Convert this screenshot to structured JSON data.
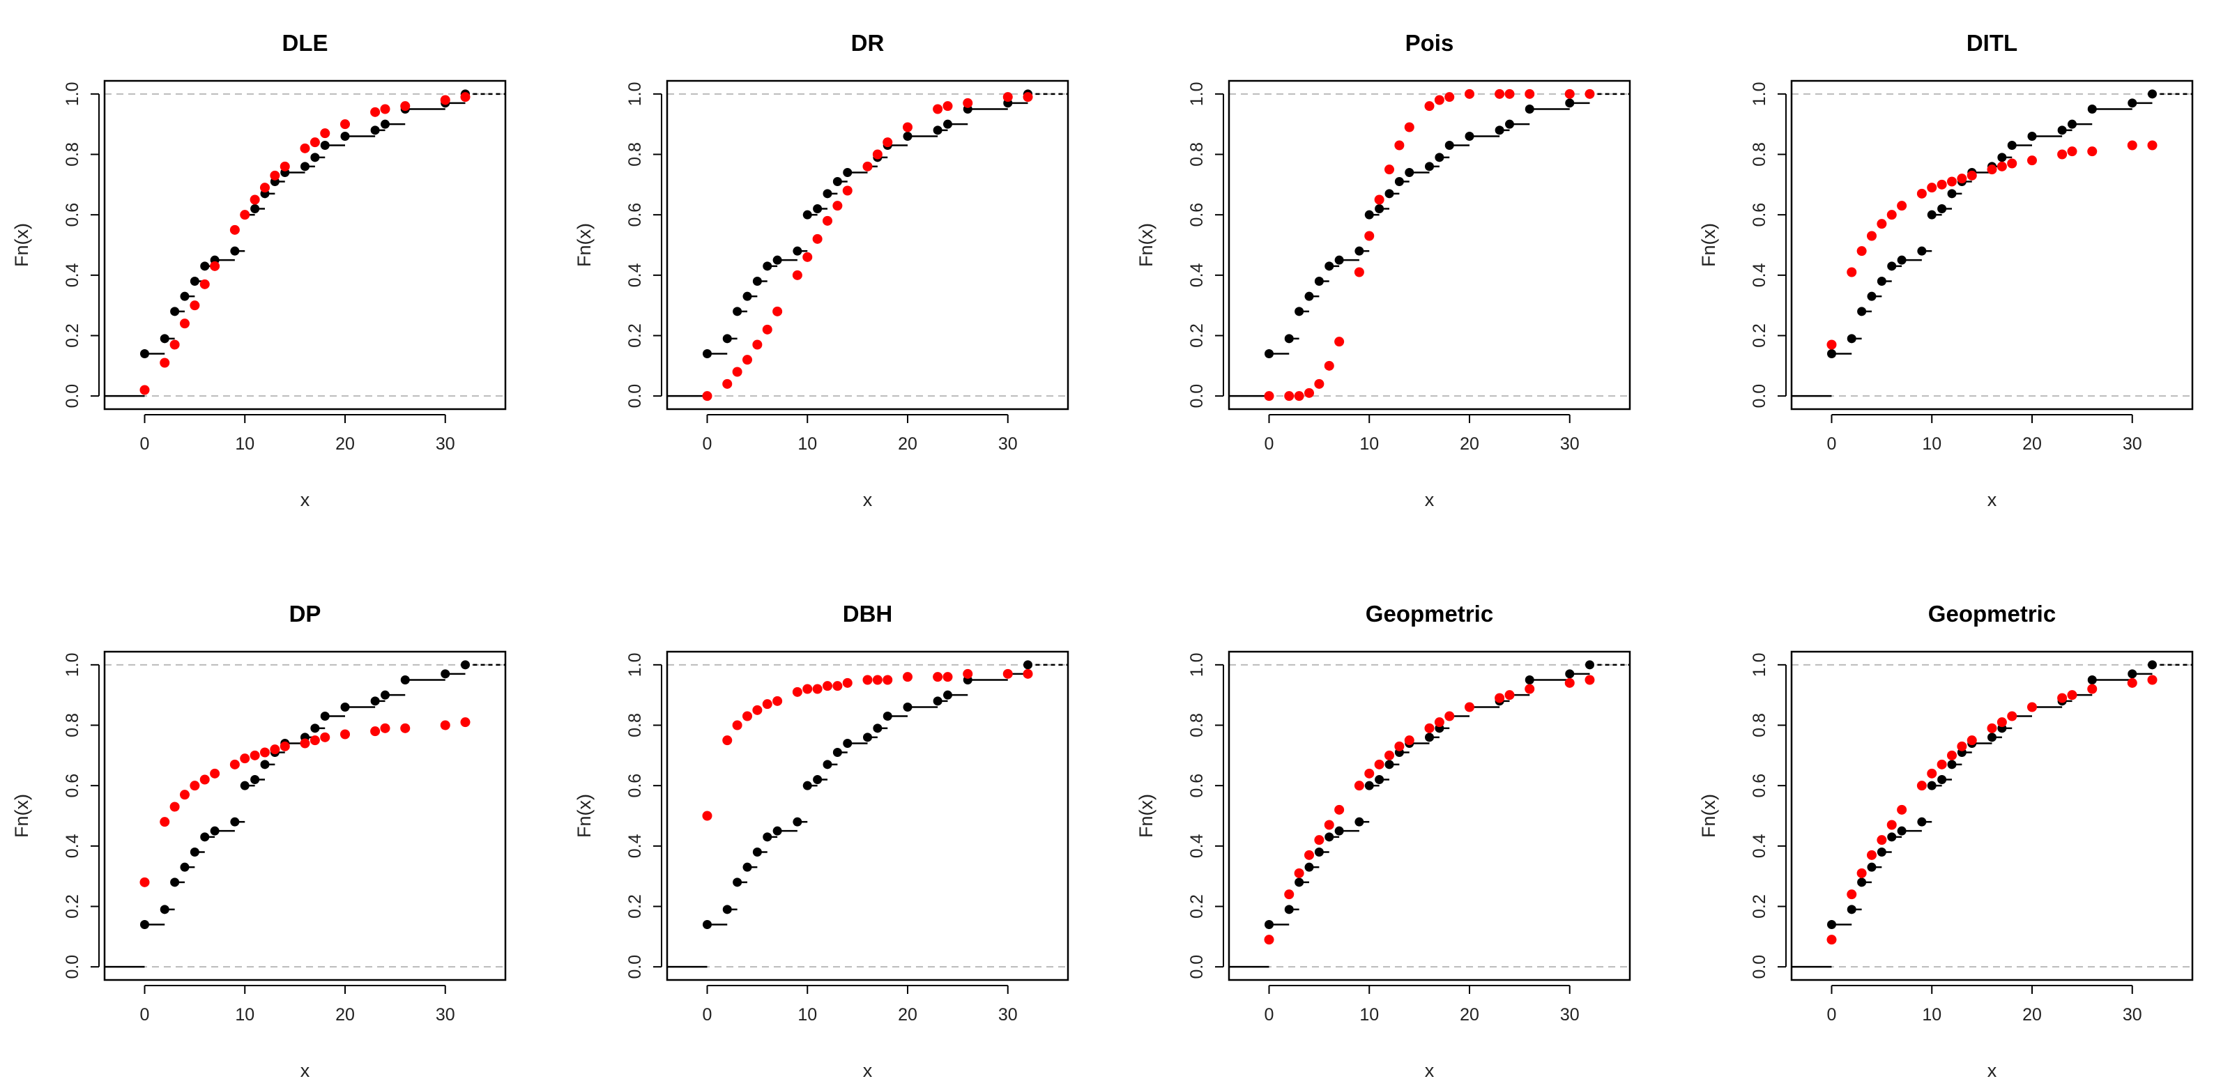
{
  "chart_data": [
    {
      "type": "step",
      "title": "DLE",
      "xlabel": "x",
      "ylabel": "Fn(x)",
      "xlim": [
        -4,
        36
      ],
      "ylim": [
        0,
        1
      ],
      "xticks": [
        0,
        10,
        20,
        30
      ],
      "yticks": [
        0.0,
        0.2,
        0.4,
        0.6,
        0.8,
        1.0
      ],
      "xtick_labels": [
        "0",
        "10",
        "20",
        "30"
      ],
      "ytick_labels": [
        "0.0",
        "0.2",
        "0.4",
        "0.6",
        "0.8",
        "1.0"
      ],
      "grid": false,
      "empirical_color": "#000000",
      "fitted_color": "#ff0000",
      "reference_color": "#bbbbbb",
      "series": [
        {
          "name": "empirical",
          "x": [
            0,
            2,
            3,
            4,
            5,
            6,
            7,
            9,
            10,
            11,
            12,
            13,
            14,
            16,
            17,
            18,
            20,
            23,
            24,
            26,
            30,
            32
          ],
          "y": [
            0.14,
            0.19,
            0.28,
            0.33,
            0.38,
            0.43,
            0.45,
            0.48,
            0.6,
            0.62,
            0.67,
            0.71,
            0.74,
            0.76,
            0.79,
            0.83,
            0.86,
            0.88,
            0.9,
            0.95,
            0.97,
            1.0
          ]
        },
        {
          "name": "fitted",
          "x": [
            0,
            2,
            3,
            4,
            5,
            6,
            7,
            9,
            10,
            11,
            12,
            13,
            14,
            16,
            17,
            18,
            20,
            23,
            24,
            26,
            30,
            32
          ],
          "y": [
            0.02,
            0.11,
            0.17,
            0.24,
            0.3,
            0.37,
            0.43,
            0.55,
            0.6,
            0.65,
            0.69,
            0.73,
            0.76,
            0.82,
            0.84,
            0.87,
            0.9,
            0.94,
            0.95,
            0.96,
            0.98,
            0.99
          ]
        }
      ]
    },
    {
      "type": "step",
      "title": "DR",
      "xlabel": "x",
      "ylabel": "Fn(x)",
      "xlim": [
        -4,
        36
      ],
      "ylim": [
        0,
        1
      ],
      "xticks": [
        0,
        10,
        20,
        30
      ],
      "yticks": [
        0.0,
        0.2,
        0.4,
        0.6,
        0.8,
        1.0
      ],
      "xtick_labels": [
        "0",
        "10",
        "20",
        "30"
      ],
      "ytick_labels": [
        "0.0",
        "0.2",
        "0.4",
        "0.6",
        "0.8",
        "1.0"
      ],
      "grid": false,
      "empirical_color": "#000000",
      "fitted_color": "#ff0000",
      "reference_color": "#bbbbbb",
      "series": [
        {
          "name": "empirical",
          "x": [
            0,
            2,
            3,
            4,
            5,
            6,
            7,
            9,
            10,
            11,
            12,
            13,
            14,
            16,
            17,
            18,
            20,
            23,
            24,
            26,
            30,
            32
          ],
          "y": [
            0.14,
            0.19,
            0.28,
            0.33,
            0.38,
            0.43,
            0.45,
            0.48,
            0.6,
            0.62,
            0.67,
            0.71,
            0.74,
            0.76,
            0.79,
            0.83,
            0.86,
            0.88,
            0.9,
            0.95,
            0.97,
            1.0
          ]
        },
        {
          "name": "fitted",
          "x": [
            0,
            2,
            3,
            4,
            5,
            6,
            7,
            9,
            10,
            11,
            12,
            13,
            14,
            16,
            17,
            18,
            20,
            23,
            24,
            26,
            30,
            32
          ],
          "y": [
            0.0,
            0.04,
            0.08,
            0.12,
            0.17,
            0.22,
            0.28,
            0.4,
            0.46,
            0.52,
            0.58,
            0.63,
            0.68,
            0.76,
            0.8,
            0.84,
            0.89,
            0.95,
            0.96,
            0.97,
            0.99,
            0.99
          ]
        }
      ]
    },
    {
      "type": "step",
      "title": "Pois",
      "xlabel": "x",
      "ylabel": "Fn(x)",
      "xlim": [
        -4,
        36
      ],
      "ylim": [
        0,
        1
      ],
      "xticks": [
        0,
        10,
        20,
        30
      ],
      "yticks": [
        0.0,
        0.2,
        0.4,
        0.6,
        0.8,
        1.0
      ],
      "xtick_labels": [
        "0",
        "10",
        "20",
        "30"
      ],
      "ytick_labels": [
        "0.0",
        "0.2",
        "0.4",
        "0.6",
        "0.8",
        "1.0"
      ],
      "grid": false,
      "empirical_color": "#000000",
      "fitted_color": "#ff0000",
      "reference_color": "#bbbbbb",
      "series": [
        {
          "name": "empirical",
          "x": [
            0,
            2,
            3,
            4,
            5,
            6,
            7,
            9,
            10,
            11,
            12,
            13,
            14,
            16,
            17,
            18,
            20,
            23,
            24,
            26,
            30,
            32
          ],
          "y": [
            0.14,
            0.19,
            0.28,
            0.33,
            0.38,
            0.43,
            0.45,
            0.48,
            0.6,
            0.62,
            0.67,
            0.71,
            0.74,
            0.76,
            0.79,
            0.83,
            0.86,
            0.88,
            0.9,
            0.95,
            0.97,
            1.0
          ]
        },
        {
          "name": "fitted",
          "x": [
            0,
            2,
            3,
            4,
            5,
            6,
            7,
            9,
            10,
            11,
            12,
            13,
            14,
            16,
            17,
            18,
            20,
            23,
            24,
            26,
            30,
            32
          ],
          "y": [
            0.0,
            0.0,
            0.0,
            0.01,
            0.04,
            0.1,
            0.18,
            0.41,
            0.53,
            0.65,
            0.75,
            0.83,
            0.89,
            0.96,
            0.98,
            0.99,
            1.0,
            1.0,
            1.0,
            1.0,
            1.0,
            1.0
          ]
        }
      ]
    },
    {
      "type": "step",
      "title": "DITL",
      "xlabel": "x",
      "ylabel": "Fn(x)",
      "xlim": [
        -4,
        36
      ],
      "ylim": [
        0,
        1
      ],
      "xticks": [
        0,
        10,
        20,
        30
      ],
      "yticks": [
        0.0,
        0.2,
        0.4,
        0.6,
        0.8,
        1.0
      ],
      "xtick_labels": [
        "0",
        "10",
        "20",
        "30"
      ],
      "ytick_labels": [
        "0.0",
        "0.2",
        "0.4",
        "0.6",
        "0.8",
        "1.0"
      ],
      "grid": false,
      "empirical_color": "#000000",
      "fitted_color": "#ff0000",
      "reference_color": "#bbbbbb",
      "series": [
        {
          "name": "empirical",
          "x": [
            0,
            2,
            3,
            4,
            5,
            6,
            7,
            9,
            10,
            11,
            12,
            13,
            14,
            16,
            17,
            18,
            20,
            23,
            24,
            26,
            30,
            32
          ],
          "y": [
            0.14,
            0.19,
            0.28,
            0.33,
            0.38,
            0.43,
            0.45,
            0.48,
            0.6,
            0.62,
            0.67,
            0.71,
            0.74,
            0.76,
            0.79,
            0.83,
            0.86,
            0.88,
            0.9,
            0.95,
            0.97,
            1.0
          ]
        },
        {
          "name": "fitted",
          "x": [
            0,
            2,
            3,
            4,
            5,
            6,
            7,
            9,
            10,
            11,
            12,
            13,
            14,
            16,
            17,
            18,
            20,
            23,
            24,
            26,
            30,
            32
          ],
          "y": [
            0.17,
            0.41,
            0.48,
            0.53,
            0.57,
            0.6,
            0.63,
            0.67,
            0.69,
            0.7,
            0.71,
            0.72,
            0.73,
            0.75,
            0.76,
            0.77,
            0.78,
            0.8,
            0.81,
            0.81,
            0.83,
            0.83
          ]
        }
      ]
    },
    {
      "type": "step",
      "title": "DP",
      "xlabel": "x",
      "ylabel": "Fn(x)",
      "xlim": [
        -4,
        36
      ],
      "ylim": [
        0,
        1
      ],
      "xticks": [
        0,
        10,
        20,
        30
      ],
      "yticks": [
        0.0,
        0.2,
        0.4,
        0.6,
        0.8,
        1.0
      ],
      "xtick_labels": [
        "0",
        "10",
        "20",
        "30"
      ],
      "ytick_labels": [
        "0.0",
        "0.2",
        "0.4",
        "0.6",
        "0.8",
        "1.0"
      ],
      "grid": false,
      "empirical_color": "#000000",
      "fitted_color": "#ff0000",
      "reference_color": "#bbbbbb",
      "series": [
        {
          "name": "empirical",
          "x": [
            0,
            2,
            3,
            4,
            5,
            6,
            7,
            9,
            10,
            11,
            12,
            13,
            14,
            16,
            17,
            18,
            20,
            23,
            24,
            26,
            30,
            32
          ],
          "y": [
            0.14,
            0.19,
            0.28,
            0.33,
            0.38,
            0.43,
            0.45,
            0.48,
            0.6,
            0.62,
            0.67,
            0.71,
            0.74,
            0.76,
            0.79,
            0.83,
            0.86,
            0.88,
            0.9,
            0.95,
            0.97,
            1.0
          ]
        },
        {
          "name": "fitted",
          "x": [
            0,
            2,
            3,
            4,
            5,
            6,
            7,
            9,
            10,
            11,
            12,
            13,
            14,
            16,
            17,
            18,
            20,
            23,
            24,
            26,
            30,
            32
          ],
          "y": [
            0.28,
            0.48,
            0.53,
            0.57,
            0.6,
            0.62,
            0.64,
            0.67,
            0.69,
            0.7,
            0.71,
            0.72,
            0.73,
            0.74,
            0.75,
            0.76,
            0.77,
            0.78,
            0.79,
            0.79,
            0.8,
            0.81
          ]
        }
      ]
    },
    {
      "type": "step",
      "title": "DBH",
      "xlabel": "x",
      "ylabel": "Fn(x)",
      "xlim": [
        -4,
        36
      ],
      "ylim": [
        0,
        1
      ],
      "xticks": [
        0,
        10,
        20,
        30
      ],
      "yticks": [
        0.0,
        0.2,
        0.4,
        0.6,
        0.8,
        1.0
      ],
      "xtick_labels": [
        "0",
        "10",
        "20",
        "30"
      ],
      "ytick_labels": [
        "0.0",
        "0.2",
        "0.4",
        "0.6",
        "0.8",
        "1.0"
      ],
      "grid": false,
      "empirical_color": "#000000",
      "fitted_color": "#ff0000",
      "reference_color": "#bbbbbb",
      "series": [
        {
          "name": "empirical",
          "x": [
            0,
            2,
            3,
            4,
            5,
            6,
            7,
            9,
            10,
            11,
            12,
            13,
            14,
            16,
            17,
            18,
            20,
            23,
            24,
            26,
            30,
            32
          ],
          "y": [
            0.14,
            0.19,
            0.28,
            0.33,
            0.38,
            0.43,
            0.45,
            0.48,
            0.6,
            0.62,
            0.67,
            0.71,
            0.74,
            0.76,
            0.79,
            0.83,
            0.86,
            0.88,
            0.9,
            0.95,
            0.97,
            1.0
          ]
        },
        {
          "name": "fitted",
          "x": [
            0,
            2,
            3,
            4,
            5,
            6,
            7,
            9,
            10,
            11,
            12,
            13,
            14,
            16,
            17,
            18,
            20,
            23,
            24,
            26,
            30,
            32
          ],
          "y": [
            0.5,
            0.75,
            0.8,
            0.83,
            0.85,
            0.87,
            0.88,
            0.91,
            0.92,
            0.92,
            0.93,
            0.93,
            0.94,
            0.95,
            0.95,
            0.95,
            0.96,
            0.96,
            0.96,
            0.97,
            0.97,
            0.97
          ]
        }
      ]
    },
    {
      "type": "step",
      "title": "Geopmetric",
      "xlabel": "x",
      "ylabel": "Fn(x)",
      "xlim": [
        -4,
        36
      ],
      "ylim": [
        0,
        1
      ],
      "xticks": [
        0,
        10,
        20,
        30
      ],
      "yticks": [
        0.0,
        0.2,
        0.4,
        0.6,
        0.8,
        1.0
      ],
      "xtick_labels": [
        "0",
        "10",
        "20",
        "30"
      ],
      "ytick_labels": [
        "0.0",
        "0.2",
        "0.4",
        "0.6",
        "0.8",
        "1.0"
      ],
      "grid": false,
      "empirical_color": "#000000",
      "fitted_color": "#ff0000",
      "reference_color": "#bbbbbb",
      "series": [
        {
          "name": "empirical",
          "x": [
            0,
            2,
            3,
            4,
            5,
            6,
            7,
            9,
            10,
            11,
            12,
            13,
            14,
            16,
            17,
            18,
            20,
            23,
            24,
            26,
            30,
            32
          ],
          "y": [
            0.14,
            0.19,
            0.28,
            0.33,
            0.38,
            0.43,
            0.45,
            0.48,
            0.6,
            0.62,
            0.67,
            0.71,
            0.74,
            0.76,
            0.79,
            0.83,
            0.86,
            0.88,
            0.9,
            0.95,
            0.97,
            1.0
          ]
        },
        {
          "name": "fitted",
          "x": [
            0,
            2,
            3,
            4,
            5,
            6,
            7,
            9,
            10,
            11,
            12,
            13,
            14,
            16,
            17,
            18,
            20,
            23,
            24,
            26,
            30,
            32
          ],
          "y": [
            0.09,
            0.24,
            0.31,
            0.37,
            0.42,
            0.47,
            0.52,
            0.6,
            0.64,
            0.67,
            0.7,
            0.73,
            0.75,
            0.79,
            0.81,
            0.83,
            0.86,
            0.89,
            0.9,
            0.92,
            0.94,
            0.95
          ]
        }
      ]
    },
    {
      "type": "step",
      "title": "Geopmetric",
      "xlabel": "x",
      "ylabel": "Fn(x)",
      "xlim": [
        -4,
        36
      ],
      "ylim": [
        0,
        1
      ],
      "xticks": [
        0,
        10,
        20,
        30
      ],
      "yticks": [
        0.0,
        0.2,
        0.4,
        0.6,
        0.8,
        1.0
      ],
      "xtick_labels": [
        "0",
        "10",
        "20",
        "30"
      ],
      "ytick_labels": [
        "0.0",
        "0.2",
        "0.4",
        "0.6",
        "0.8",
        "1.0"
      ],
      "grid": false,
      "empirical_color": "#000000",
      "fitted_color": "#ff0000",
      "reference_color": "#bbbbbb",
      "series": [
        {
          "name": "empirical",
          "x": [
            0,
            2,
            3,
            4,
            5,
            6,
            7,
            9,
            10,
            11,
            12,
            13,
            14,
            16,
            17,
            18,
            20,
            23,
            24,
            26,
            30,
            32
          ],
          "y": [
            0.14,
            0.19,
            0.28,
            0.33,
            0.38,
            0.43,
            0.45,
            0.48,
            0.6,
            0.62,
            0.67,
            0.71,
            0.74,
            0.76,
            0.79,
            0.83,
            0.86,
            0.88,
            0.9,
            0.95,
            0.97,
            1.0
          ]
        },
        {
          "name": "fitted",
          "x": [
            0,
            2,
            3,
            4,
            5,
            6,
            7,
            9,
            10,
            11,
            12,
            13,
            14,
            16,
            17,
            18,
            20,
            23,
            24,
            26,
            30,
            32
          ],
          "y": [
            0.09,
            0.24,
            0.31,
            0.37,
            0.42,
            0.47,
            0.52,
            0.6,
            0.64,
            0.67,
            0.7,
            0.73,
            0.75,
            0.79,
            0.81,
            0.83,
            0.86,
            0.89,
            0.9,
            0.92,
            0.94,
            0.95
          ]
        }
      ]
    }
  ]
}
